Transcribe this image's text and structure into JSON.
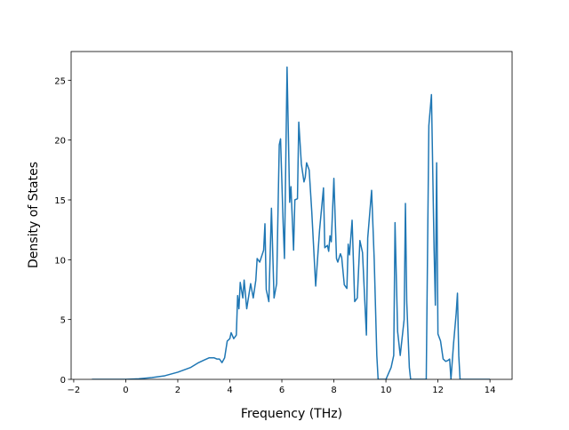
{
  "chart_data": {
    "type": "line",
    "x_label": "Frequency (THz)",
    "y_label": "Density of States",
    "xlim": [
      -2.1,
      14.85
    ],
    "ylim": [
      0,
      27.4
    ],
    "xticks": [
      {
        "value": -2,
        "label": "−2"
      },
      0,
      2,
      4,
      6,
      8,
      10,
      12,
      14
    ],
    "yticks": [
      0,
      5,
      10,
      15,
      20,
      25
    ],
    "series": [
      {
        "color": "#1f77b4",
        "x": [
          -1.3,
          0,
          0.5,
          1,
          1.5,
          2,
          2.5,
          2.8,
          3,
          3.2,
          3.4,
          3.5,
          3.6,
          3.7,
          3.8,
          3.9,
          4.0,
          4.05,
          4.15,
          4.25,
          4.3,
          4.35,
          4.4,
          4.5,
          4.55,
          4.65,
          4.8,
          4.9,
          5.0,
          5.05,
          5.15,
          5.3,
          5.35,
          5.4,
          5.5,
          5.6,
          5.7,
          5.8,
          5.9,
          5.95,
          6.05,
          6.1,
          6.2,
          6.3,
          6.35,
          6.45,
          6.5,
          6.6,
          6.65,
          6.75,
          6.85,
          6.9,
          6.95,
          7.05,
          7.15,
          7.3,
          7.45,
          7.6,
          7.65,
          7.75,
          7.8,
          7.85,
          7.9,
          8.0,
          8.1,
          8.15,
          8.25,
          8.3,
          8.4,
          8.5,
          8.55,
          8.6,
          8.7,
          8.8,
          8.9,
          9.0,
          9.1,
          9.25,
          9.3,
          9.45,
          9.55,
          9.65,
          9.7,
          10.0,
          10.1,
          10.2,
          10.3,
          10.35,
          10.45,
          10.55,
          10.7,
          10.75,
          10.8,
          10.9,
          10.95,
          11.55,
          11.65,
          11.75,
          11.85,
          11.9,
          11.95,
          12.0,
          12.1,
          12.2,
          12.3,
          12.4,
          12.45,
          12.5,
          12.6,
          12.7,
          12.75,
          12.8,
          12.85,
          14.0
        ],
        "values": [
          0,
          0,
          0.05,
          0.15,
          0.3,
          0.6,
          1.0,
          1.4,
          1.6,
          1.8,
          1.8,
          1.7,
          1.7,
          1.4,
          1.8,
          3.2,
          3.4,
          3.9,
          3.4,
          3.7,
          7.0,
          5.9,
          8.1,
          6.8,
          8.3,
          5.9,
          8.0,
          6.8,
          8.3,
          10.1,
          9.8,
          10.8,
          13.0,
          7.5,
          6.5,
          14.3,
          6.8,
          8.0,
          19.6,
          20.1,
          13.0,
          10.1,
          26.1,
          14.8,
          16.1,
          10.8,
          15.0,
          15.1,
          21.5,
          18.0,
          16.5,
          16.9,
          18.1,
          17.5,
          14.0,
          7.8,
          12.5,
          16.0,
          11.0,
          11.2,
          10.7,
          12.0,
          11.5,
          16.8,
          10.1,
          9.8,
          10.5,
          10.2,
          7.9,
          7.6,
          11.3,
          10.4,
          13.3,
          6.5,
          6.8,
          11.6,
          10.6,
          3.7,
          11.8,
          15.8,
          10.0,
          2.0,
          0,
          0,
          0.5,
          1.0,
          2.0,
          13.1,
          4.0,
          2.0,
          5.0,
          14.7,
          6.5,
          1.0,
          0,
          0,
          21.2,
          23.8,
          11.0,
          6.2,
          18.1,
          3.8,
          3.2,
          1.7,
          1.5,
          1.6,
          1.7,
          0,
          3.0,
          5.5,
          7.2,
          2.0,
          0,
          0
        ]
      }
    ]
  }
}
